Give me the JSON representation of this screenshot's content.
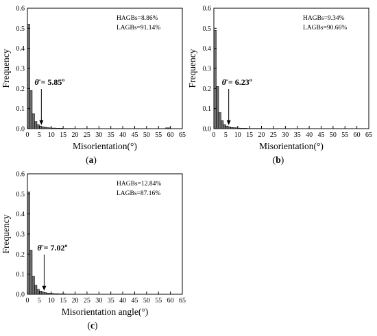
{
  "figure": {
    "panel_labels": [
      {
        "open": "(",
        "letter": "a",
        "close": ")"
      },
      {
        "open": "(",
        "letter": "b",
        "close": ")"
      },
      {
        "open": "(",
        "letter": "c",
        "close": ")"
      }
    ]
  },
  "colors": {
    "bar_fill": "#6f6f6f",
    "bar_stroke": "#000000",
    "axis": "#000000"
  },
  "chart_data": [
    {
      "type": "bar",
      "ylabel": "Frequency",
      "xlabel": "Misorientation(°)",
      "xlim": [
        0,
        65
      ],
      "ylim": [
        0,
        0.6
      ],
      "x_ticks": [
        "0",
        "5",
        "10",
        "15",
        "20",
        "25",
        "30",
        "35",
        "40",
        "45",
        "50",
        "55",
        "60",
        "65"
      ],
      "y_ticks": [
        "0.0",
        "0.1",
        "0.2",
        "0.3",
        "0.4",
        "0.5",
        "0.6"
      ],
      "legend": {
        "hagbs": "HAGBs=8.86%",
        "lagbs": "LAGBs=91.14%"
      },
      "annotation": {
        "symbol": "θ̄",
        "text": "= 5.85º",
        "arrow_x": 5.85
      },
      "bin_width": 1,
      "bins": [
        1,
        2,
        3,
        4,
        5,
        6,
        7,
        8,
        9,
        10,
        11,
        12,
        13,
        14,
        15,
        16,
        17,
        18,
        19,
        20,
        59,
        60
      ],
      "values": [
        0.52,
        0.19,
        0.075,
        0.035,
        0.02,
        0.013,
        0.009,
        0.007,
        0.005,
        0.004,
        0.003,
        0.003,
        0.002,
        0.002,
        0.002,
        0.001,
        0.001,
        0.001,
        0.001,
        0.001,
        0.004,
        0.004
      ]
    },
    {
      "type": "bar",
      "ylabel": "Frequency",
      "xlabel": "Misorientation(°)",
      "xlim": [
        0,
        65
      ],
      "ylim": [
        0,
        0.6
      ],
      "x_ticks": [
        "0",
        "5",
        "10",
        "15",
        "20",
        "25",
        "30",
        "35",
        "40",
        "45",
        "50",
        "55",
        "60",
        "65"
      ],
      "y_ticks": [
        "0.0",
        "0.1",
        "0.2",
        "0.3",
        "0.4",
        "0.5",
        "0.6"
      ],
      "legend": {
        "hagbs": "HAGBs=9.34%",
        "lagbs": "LAGBs=90.66%"
      },
      "annotation": {
        "symbol": "θ̄",
        "text": "= 6.23º",
        "arrow_x": 6.23
      },
      "bin_width": 1,
      "bins": [
        1,
        2,
        3,
        4,
        5,
        6,
        7,
        8,
        9,
        10,
        11,
        12,
        13,
        14,
        15,
        16,
        17,
        18,
        19,
        20
      ],
      "values": [
        0.49,
        0.21,
        0.08,
        0.04,
        0.02,
        0.013,
        0.009,
        0.006,
        0.005,
        0.004,
        0.003,
        0.002,
        0.002,
        0.002,
        0.001,
        0.001,
        0.001,
        0.001,
        0.001,
        0.001
      ]
    },
    {
      "type": "bar",
      "ylabel": "Frequency",
      "xlabel": "Misorientation angle(°)",
      "xlim": [
        0,
        65
      ],
      "ylim": [
        0,
        0.6
      ],
      "x_ticks": [
        "0",
        "5",
        "10",
        "15",
        "20",
        "25",
        "30",
        "35",
        "40",
        "45",
        "50",
        "55",
        "60",
        "65"
      ],
      "y_ticks": [
        "0.0",
        "0.1",
        "0.2",
        "0.3",
        "0.4",
        "0.5",
        "0.6"
      ],
      "legend": {
        "hagbs": "HAGBs=12.84%",
        "lagbs": "LAGBs=87.16%"
      },
      "annotation": {
        "symbol": "θ̄",
        "text": "= 7.02º",
        "arrow_x": 7.02
      },
      "bin_width": 1,
      "bins": [
        1,
        2,
        3,
        4,
        5,
        6,
        7,
        8,
        9,
        10,
        11,
        12,
        13,
        14,
        15,
        16,
        17,
        18,
        19,
        20
      ],
      "values": [
        0.51,
        0.22,
        0.09,
        0.045,
        0.025,
        0.016,
        0.011,
        0.008,
        0.006,
        0.005,
        0.004,
        0.003,
        0.003,
        0.002,
        0.002,
        0.002,
        0.001,
        0.001,
        0.001,
        0.001
      ]
    }
  ]
}
